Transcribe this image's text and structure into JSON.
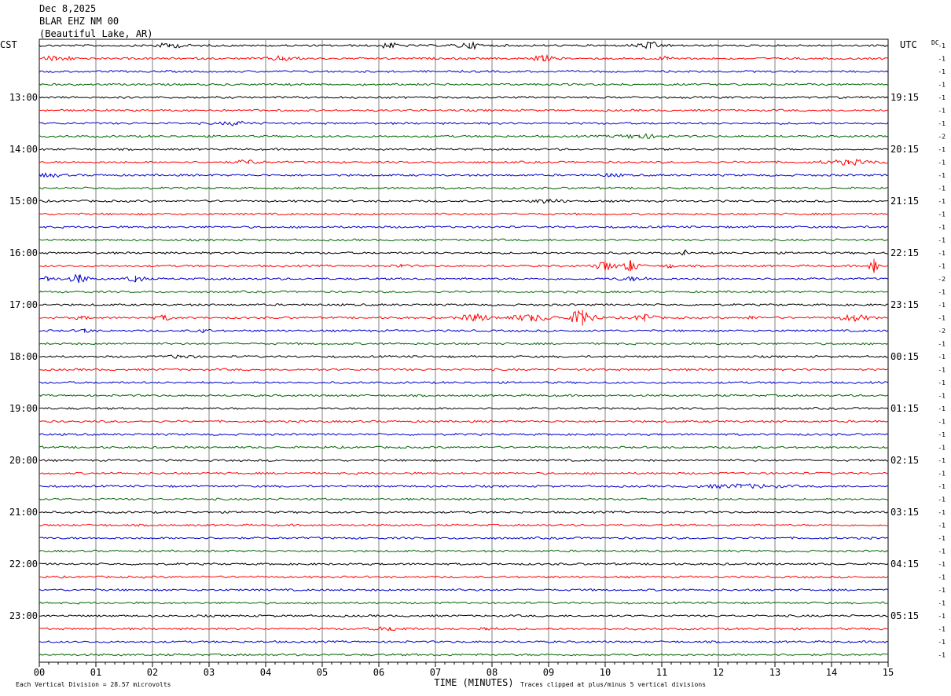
{
  "header": {
    "date": "Dec 8,2025",
    "station": "BLAR EHZ NM 00",
    "location": "(Beautiful Lake, AR)"
  },
  "chart_data": {
    "type": "line",
    "title": "Dec 8,2025",
    "left_tz": "CST",
    "right_tz": "UTC",
    "dc_label": "DC",
    "left_hour_labels": [
      "13:00",
      "14:00",
      "15:00",
      "16:00",
      "17:00",
      "18:00",
      "19:00",
      "20:00",
      "21:00",
      "22:00",
      "23:00"
    ],
    "right_hour_labels": [
      "19:15",
      "20:15",
      "21:15",
      "22:15",
      "23:15",
      "00:15",
      "01:15",
      "02:15",
      "03:15",
      "04:15",
      "05:15"
    ],
    "dc_values": [
      "-1",
      "-1",
      "-1",
      "-1",
      "-1",
      "-1",
      "-1",
      "-2",
      "-1",
      "-1",
      "-1",
      "-1",
      "-1",
      "-1",
      "-1",
      "-1",
      "-1",
      "-1",
      "-2",
      "-1",
      "-1",
      "-1",
      "-2",
      "-1",
      "-1",
      "-1",
      "-1",
      "-1",
      "-1",
      "-1",
      "-1",
      "-1",
      "-1",
      "-1",
      "-1",
      "-1",
      "-1",
      "-1",
      "-1",
      "-1",
      "-1",
      "-1",
      "-1",
      "-1",
      "-1",
      "-1",
      "-1",
      "-1"
    ],
    "x_ticks": [
      "00",
      "01",
      "02",
      "03",
      "04",
      "05",
      "06",
      "07",
      "08",
      "09",
      "10",
      "11",
      "12",
      "13",
      "14",
      "15"
    ],
    "xlim": [
      0,
      15
    ],
    "xlabel": "TIME (MINUTES)",
    "footer_left": "Each Vertical Division =   28.57 microvolts",
    "footer_right": "Traces clipped at plus/minus 5 vertical divisions",
    "trace_colors": [
      "#000000",
      "#ff0000",
      "#0000cc",
      "#006600"
    ],
    "num_traces": 48,
    "events": [
      {
        "trace": 0,
        "x": 2.3,
        "amp": 2.2,
        "dur": 0.6
      },
      {
        "trace": 0,
        "x": 6.2,
        "amp": 2.6,
        "dur": 0.4
      },
      {
        "trace": 0,
        "x": 7.6,
        "amp": 3.0,
        "dur": 0.5
      },
      {
        "trace": 0,
        "x": 10.8,
        "amp": 3.5,
        "dur": 0.5
      },
      {
        "trace": 1,
        "x": 0.3,
        "amp": 2.5,
        "dur": 0.6
      },
      {
        "trace": 1,
        "x": 4.3,
        "amp": 2.4,
        "dur": 0.5
      },
      {
        "trace": 1,
        "x": 8.9,
        "amp": 3.0,
        "dur": 0.4
      },
      {
        "trace": 1,
        "x": 11.1,
        "amp": 2.0,
        "dur": 0.3
      },
      {
        "trace": 6,
        "x": 3.5,
        "amp": 2.0,
        "dur": 0.5
      },
      {
        "trace": 7,
        "x": 10.6,
        "amp": 2.2,
        "dur": 0.8
      },
      {
        "trace": 9,
        "x": 3.7,
        "amp": 2.2,
        "dur": 0.4
      },
      {
        "trace": 9,
        "x": 14.3,
        "amp": 2.5,
        "dur": 0.9
      },
      {
        "trace": 10,
        "x": 0.2,
        "amp": 1.8,
        "dur": 0.4
      },
      {
        "trace": 10,
        "x": 10.1,
        "amp": 1.8,
        "dur": 0.3
      },
      {
        "trace": 12,
        "x": 9.0,
        "amp": 2.2,
        "dur": 0.5
      },
      {
        "trace": 16,
        "x": 11.4,
        "amp": 3.0,
        "dur": 0.1
      },
      {
        "trace": 17,
        "x": 6.4,
        "amp": 2.0,
        "dur": 0.2
      },
      {
        "trace": 17,
        "x": 10.0,
        "amp": 6.0,
        "dur": 0.3
      },
      {
        "trace": 17,
        "x": 10.45,
        "amp": 6.5,
        "dur": 0.3
      },
      {
        "trace": 17,
        "x": 11.15,
        "amp": 2.5,
        "dur": 0.15
      },
      {
        "trace": 17,
        "x": 14.75,
        "amp": 9.0,
        "dur": 0.15
      },
      {
        "trace": 18,
        "x": 0.15,
        "amp": 2.5,
        "dur": 0.3
      },
      {
        "trace": 18,
        "x": 0.7,
        "amp": 5.0,
        "dur": 0.3
      },
      {
        "trace": 18,
        "x": 1.7,
        "amp": 4.0,
        "dur": 0.3
      },
      {
        "trace": 18,
        "x": 10.5,
        "amp": 1.8,
        "dur": 0.6
      },
      {
        "trace": 21,
        "x": 0.75,
        "amp": 2.0,
        "dur": 0.2
      },
      {
        "trace": 21,
        "x": 2.2,
        "amp": 2.5,
        "dur": 0.3
      },
      {
        "trace": 21,
        "x": 7.7,
        "amp": 4.0,
        "dur": 0.5
      },
      {
        "trace": 21,
        "x": 8.7,
        "amp": 3.5,
        "dur": 0.8
      },
      {
        "trace": 21,
        "x": 9.6,
        "amp": 10.0,
        "dur": 0.4
      },
      {
        "trace": 21,
        "x": 10.7,
        "amp": 5.0,
        "dur": 0.3
      },
      {
        "trace": 21,
        "x": 12.6,
        "amp": 1.8,
        "dur": 0.2
      },
      {
        "trace": 21,
        "x": 14.4,
        "amp": 3.5,
        "dur": 0.5
      },
      {
        "trace": 22,
        "x": 0.8,
        "amp": 2.5,
        "dur": 0.2
      },
      {
        "trace": 22,
        "x": 2.9,
        "amp": 2.0,
        "dur": 0.2
      },
      {
        "trace": 24,
        "x": 2.5,
        "amp": 1.6,
        "dur": 0.5
      },
      {
        "trace": 34,
        "x": 12.4,
        "amp": 2.0,
        "dur": 1.4
      },
      {
        "trace": 45,
        "x": 6.2,
        "amp": 1.8,
        "dur": 0.6
      },
      {
        "trace": 45,
        "x": 7.9,
        "amp": 1.6,
        "dur": 0.3
      }
    ]
  }
}
